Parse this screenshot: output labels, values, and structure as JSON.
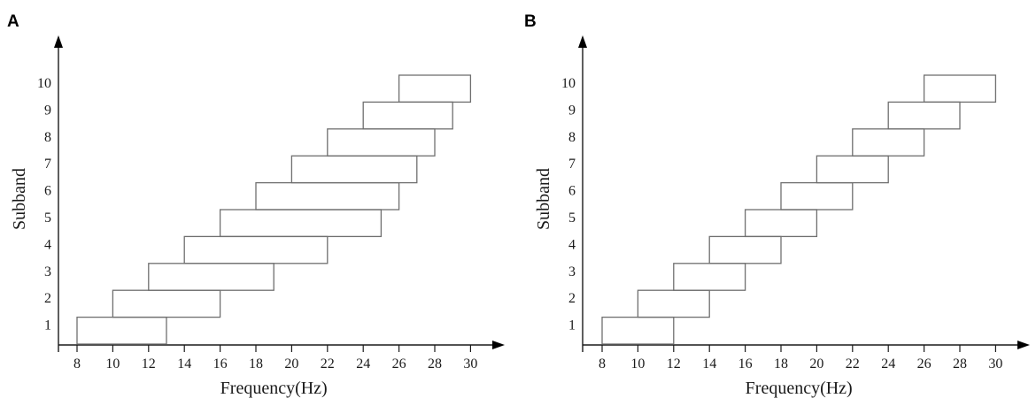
{
  "chart_data": [
    {
      "panel": "A",
      "type": "bar",
      "xlabel": "Frequency(Hz)",
      "ylabel": "Subband",
      "x_ticks": [
        8,
        10,
        12,
        14,
        16,
        18,
        20,
        22,
        24,
        26,
        28,
        30
      ],
      "y_ticks": [
        1,
        2,
        3,
        4,
        5,
        6,
        7,
        8,
        9,
        10
      ],
      "xlim": [
        7,
        32
      ],
      "ylim": [
        0,
        11.2
      ],
      "bands": [
        {
          "subband": 1,
          "low": 8,
          "high": 13
        },
        {
          "subband": 2,
          "low": 10,
          "high": 16
        },
        {
          "subband": 3,
          "low": 12,
          "high": 19
        },
        {
          "subband": 4,
          "low": 14,
          "high": 22
        },
        {
          "subband": 5,
          "low": 16,
          "high": 25
        },
        {
          "subband": 6,
          "low": 18,
          "high": 26
        },
        {
          "subband": 7,
          "low": 20,
          "high": 27
        },
        {
          "subband": 8,
          "low": 22,
          "high": 28
        },
        {
          "subband": 9,
          "low": 24,
          "high": 29
        },
        {
          "subband": 10,
          "low": 26,
          "high": 30
        }
      ]
    },
    {
      "panel": "B",
      "type": "bar",
      "xlabel": "Frequency(Hz)",
      "ylabel": "Subband",
      "x_ticks": [
        8,
        10,
        12,
        14,
        16,
        18,
        20,
        22,
        24,
        26,
        28,
        30
      ],
      "y_ticks": [
        1,
        2,
        3,
        4,
        5,
        6,
        7,
        8,
        9,
        10
      ],
      "xlim": [
        7,
        32
      ],
      "ylim": [
        0,
        11.2
      ],
      "bands": [
        {
          "subband": 1,
          "low": 8,
          "high": 12
        },
        {
          "subband": 2,
          "low": 10,
          "high": 14
        },
        {
          "subband": 3,
          "low": 12,
          "high": 16
        },
        {
          "subband": 4,
          "low": 14,
          "high": 18
        },
        {
          "subband": 5,
          "low": 16,
          "high": 20
        },
        {
          "subband": 6,
          "low": 18,
          "high": 22
        },
        {
          "subband": 7,
          "low": 20,
          "high": 24
        },
        {
          "subband": 8,
          "low": 22,
          "high": 26
        },
        {
          "subband": 9,
          "low": 24,
          "high": 28
        },
        {
          "subband": 10,
          "low": 26,
          "high": 30
        }
      ]
    }
  ]
}
